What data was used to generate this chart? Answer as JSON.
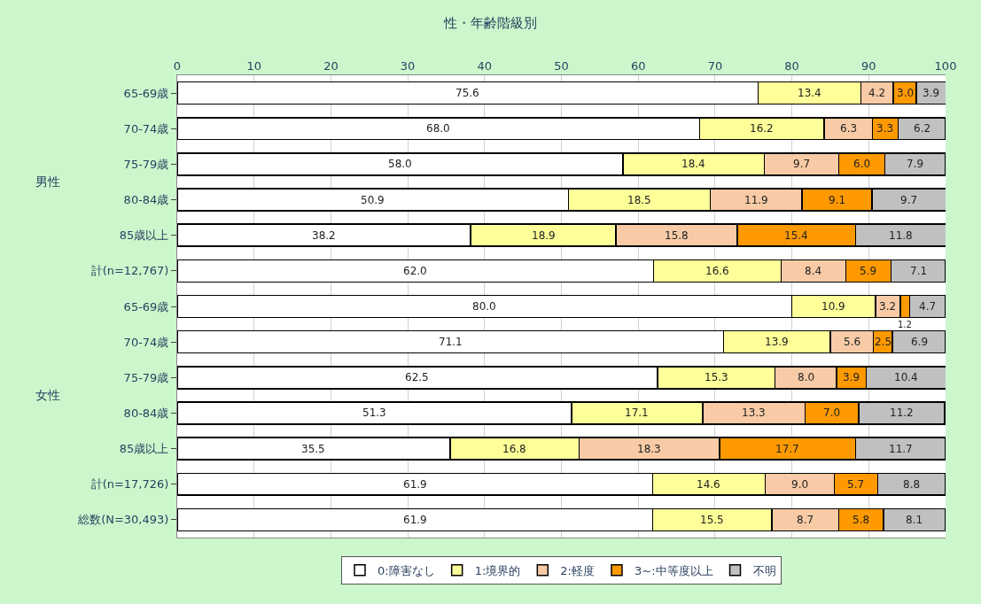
{
  "chart_data": {
    "type": "bar",
    "orientation": "horizontal",
    "stacked": true,
    "title": "性・年齢階級別",
    "categories": [
      "65-69歳",
      "70-74歳",
      "75-79歳",
      "80-84歳",
      "85歳以上",
      "計(n=12,767)",
      "65-69歳",
      "70-74歳",
      "75-79歳",
      "80-84歳",
      "85歳以上",
      "計(n=17,726)",
      "総数(N=30,493)"
    ],
    "series": [
      {
        "name": "0:障害なし",
        "color": "#ffffff",
        "values": [
          75.6,
          68.0,
          58.0,
          50.9,
          38.2,
          62.0,
          80.0,
          71.1,
          62.5,
          51.3,
          35.5,
          61.9,
          61.9
        ]
      },
      {
        "name": "1:境界的",
        "color": "#ffff99",
        "values": [
          13.4,
          16.2,
          18.4,
          18.5,
          18.9,
          16.6,
          10.9,
          13.9,
          15.3,
          17.1,
          16.8,
          14.6,
          15.5
        ]
      },
      {
        "name": "2:軽度",
        "color": "#f8cba6",
        "values": [
          4.2,
          6.3,
          9.7,
          11.9,
          15.8,
          8.4,
          3.2,
          5.6,
          8.0,
          13.3,
          18.3,
          9.0,
          8.7
        ]
      },
      {
        "name": "3~:中等度以上",
        "color": "#ff9900",
        "values": [
          3.0,
          3.3,
          6.0,
          9.1,
          15.4,
          5.9,
          1.2,
          2.5,
          3.9,
          7.0,
          17.7,
          5.7,
          5.8
        ]
      },
      {
        "name": "不明",
        "color": "#c0c0c0",
        "values": [
          3.9,
          6.2,
          7.9,
          9.7,
          11.8,
          7.1,
          4.7,
          6.9,
          10.4,
          11.2,
          11.7,
          8.8,
          8.1
        ]
      }
    ],
    "value_labels": [
      [
        "75.6",
        "68.0",
        "58.0",
        "50.9",
        "38.2",
        "62.0",
        "80.0",
        "71.1",
        "62.5",
        "51.3",
        "35.5",
        "61.9",
        "61.9"
      ],
      [
        "13.4",
        "16.2",
        "18.4",
        "18.5",
        "18.9",
        "16.6",
        "10.9",
        "13.9",
        "15.3",
        "17.1",
        "16.8",
        "14.6",
        "15.5"
      ],
      [
        "4.2",
        "6.3",
        "9.7",
        "11.9",
        "15.8",
        "8.4",
        "3.2",
        "5.6",
        "8.0",
        "13.3",
        "18.3",
        "9.0",
        "8.7"
      ],
      [
        "3.0",
        "3.3",
        "6.0",
        "9.1",
        "15.4",
        "5.9",
        "1.2",
        "2.5",
        "3.9",
        "7.0",
        "17.7",
        "5.7",
        "5.8"
      ],
      [
        "3.9",
        "6.2",
        "7.9",
        "9.7",
        "11.8",
        "7.1",
        "4.7",
        "6.9",
        "10.4",
        "11.2",
        "11.7",
        "8.8",
        "8.1"
      ]
    ],
    "xlim": [
      0,
      100
    ],
    "xticks": [
      0,
      10,
      20,
      30,
      40,
      50,
      60,
      70,
      80,
      90,
      100
    ],
    "grid": "x",
    "legend": "bottom",
    "annotations": [
      "男性",
      "女性"
    ]
  }
}
